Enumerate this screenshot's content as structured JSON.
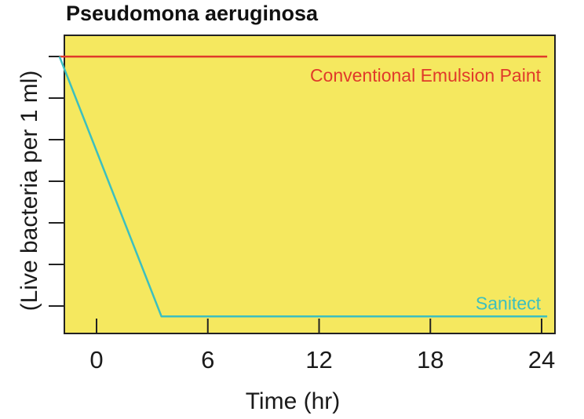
{
  "chart_data": {
    "type": "line",
    "title": "Pseudomona aeruginosa",
    "xlabel": "Time (hr)",
    "ylabel": "(Live bacteria per 1 ml)",
    "x_ticks": [
      "0",
      "6",
      "12",
      "18",
      "24"
    ],
    "x_tick_values": [
      0,
      6,
      12,
      18,
      24
    ],
    "xlim": [
      -2,
      24.6
    ],
    "y_tick_count": 7,
    "ylim": [
      0,
      7
    ],
    "grid": false,
    "background_color": "#f5e85f",
    "series": [
      {
        "name": "Conventional Emulsion Paint",
        "color": "#e03a2a",
        "points": [
          [
            -2,
            6.5
          ],
          [
            24.3,
            6.5
          ]
        ]
      },
      {
        "name": "Sanitect",
        "color": "#3cbfbf",
        "points": [
          [
            -2,
            6.5
          ],
          [
            3.5,
            0.4
          ],
          [
            24.3,
            0.4
          ]
        ]
      }
    ]
  }
}
